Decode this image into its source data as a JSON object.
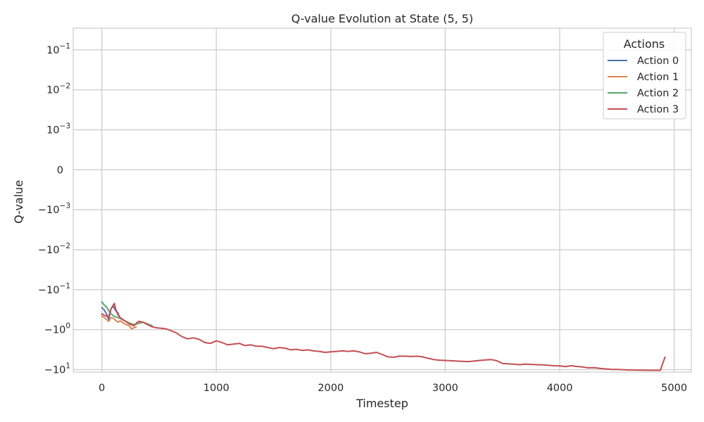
{
  "chart_data": {
    "type": "line",
    "title": "Q-value Evolution at State (5, 5)",
    "xlabel": "Timestep",
    "ylabel": "Q-value",
    "yscale": "symlog",
    "yscale_linthresh": 0.001,
    "xlim": [
      -250,
      5150
    ],
    "ylim": [
      -11.5,
      0.35
    ],
    "x_ticks": [
      {
        "value": 0,
        "label": "0"
      },
      {
        "value": 1000,
        "label": "1000"
      },
      {
        "value": 2000,
        "label": "2000"
      },
      {
        "value": 3000,
        "label": "3000"
      },
      {
        "value": 4000,
        "label": "4000"
      },
      {
        "value": 5000,
        "label": "5000"
      }
    ],
    "y_ticks": [
      {
        "value": 0.1,
        "label": "10",
        "exp": "−1"
      },
      {
        "value": 0.01,
        "label": "10",
        "exp": "−2"
      },
      {
        "value": 0.001,
        "label": "10",
        "exp": "−3"
      },
      {
        "value": 0,
        "label": "0",
        "exp": ""
      },
      {
        "value": -0.001,
        "label": "−10",
        "exp": "−3"
      },
      {
        "value": -0.01,
        "label": "−10",
        "exp": "−2"
      },
      {
        "value": -0.1,
        "label": "−10",
        "exp": "−1"
      },
      {
        "value": -1,
        "label": "−10",
        "exp": "0"
      },
      {
        "value": -10,
        "label": "−10",
        "exp": "1"
      }
    ],
    "grid": true,
    "legend": {
      "title": "Actions",
      "position": "top-right"
    },
    "series": [
      {
        "name": "Action 0",
        "color": "#4c72b0",
        "x": [
          0,
          20,
          40,
          60,
          80,
          100,
          120,
          140,
          160,
          200
        ],
        "y": [
          -0.28,
          -0.32,
          -0.4,
          -0.55,
          -0.3,
          -0.26,
          -0.33,
          -0.38,
          -0.52,
          -0.6
        ]
      },
      {
        "name": "Action 1",
        "color": "#dd8452",
        "x": [
          0,
          20,
          40,
          60,
          80,
          100,
          120,
          140,
          160,
          200,
          240,
          260,
          280,
          300
        ],
        "y": [
          -0.45,
          -0.5,
          -0.55,
          -0.62,
          -0.5,
          -0.52,
          -0.58,
          -0.65,
          -0.6,
          -0.72,
          -0.8,
          -0.95,
          -0.9,
          -0.85
        ]
      },
      {
        "name": "Action 2",
        "color": "#55a868",
        "x": [
          0,
          10,
          20,
          40,
          60,
          80,
          100,
          120,
          160,
          200,
          240,
          280,
          320,
          360,
          400,
          440
        ],
        "y": [
          -0.2,
          -0.22,
          -0.24,
          -0.27,
          -0.33,
          -0.4,
          -0.45,
          -0.48,
          -0.52,
          -0.6,
          -0.68,
          -0.75,
          -0.7,
          -0.65,
          -0.72,
          -0.8
        ]
      },
      {
        "name": "Action 3",
        "color": "#c44e52",
        "x": [
          0,
          30,
          60,
          80,
          100,
          110,
          120,
          140,
          160,
          200,
          240,
          280,
          300,
          320,
          360,
          400,
          440,
          480,
          520,
          560,
          600,
          650,
          700,
          750,
          800,
          850,
          900,
          950,
          1000,
          1050,
          1100,
          1150,
          1200,
          1250,
          1300,
          1350,
          1400,
          1450,
          1500,
          1550,
          1600,
          1650,
          1700,
          1750,
          1800,
          1850,
          1900,
          1950,
          2000,
          2050,
          2100,
          2150,
          2200,
          2250,
          2300,
          2350,
          2400,
          2450,
          2500,
          2550,
          2600,
          2650,
          2700,
          2750,
          2800,
          2850,
          2900,
          2950,
          3000,
          3050,
          3100,
          3150,
          3200,
          3250,
          3300,
          3350,
          3400,
          3450,
          3500,
          3550,
          3600,
          3650,
          3700,
          3750,
          3800,
          3850,
          3900,
          3950,
          4000,
          4050,
          4100,
          4150,
          4200,
          4250,
          4300,
          4350,
          4400,
          4450,
          4500,
          4600,
          4700,
          4800,
          4880,
          4900,
          4920
        ],
        "y": [
          -0.4,
          -0.45,
          -0.48,
          -0.3,
          -0.24,
          -0.22,
          -0.3,
          -0.42,
          -0.5,
          -0.6,
          -0.72,
          -0.8,
          -0.7,
          -0.62,
          -0.65,
          -0.75,
          -0.85,
          -0.9,
          -0.92,
          -0.95,
          -1.05,
          -1.2,
          -1.5,
          -1.7,
          -1.6,
          -1.75,
          -2.1,
          -2.2,
          -1.9,
          -2.1,
          -2.4,
          -2.3,
          -2.2,
          -2.5,
          -2.4,
          -2.6,
          -2.6,
          -2.8,
          -3.0,
          -2.8,
          -2.9,
          -3.2,
          -3.1,
          -3.3,
          -3.2,
          -3.4,
          -3.5,
          -3.7,
          -3.6,
          -3.5,
          -3.4,
          -3.5,
          -3.4,
          -3.6,
          -4.0,
          -3.9,
          -3.7,
          -4.2,
          -4.8,
          -4.9,
          -4.6,
          -4.6,
          -4.7,
          -4.6,
          -4.8,
          -5.2,
          -5.6,
          -5.8,
          -5.9,
          -6.0,
          -6.1,
          -6.2,
          -6.3,
          -6.1,
          -5.9,
          -5.7,
          -5.6,
          -6.0,
          -7.0,
          -7.2,
          -7.3,
          -7.5,
          -7.3,
          -7.4,
          -7.5,
          -7.6,
          -7.8,
          -8.0,
          -8.1,
          -8.4,
          -8.0,
          -8.3,
          -8.6,
          -9.0,
          -8.9,
          -9.3,
          -9.6,
          -9.8,
          -9.9,
          -10.2,
          -10.3,
          -10.4,
          -10.4,
          -7.0,
          -4.9
        ]
      }
    ]
  }
}
